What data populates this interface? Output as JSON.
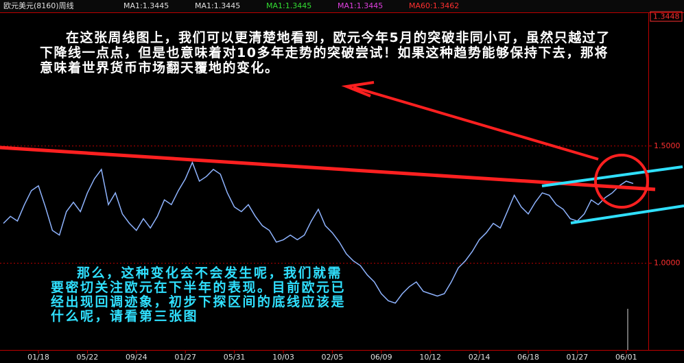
{
  "chart_data": {
    "type": "line",
    "title": "欧元美元(8160)周线",
    "indicators": [
      {
        "label": "MA1:1.3445",
        "color": "#e0e0e0"
      },
      {
        "label": "MA1:1.3445",
        "color": "#e0e0e0"
      },
      {
        "label": "MA1:1.3445",
        "color": "#33dd33"
      },
      {
        "label": "MA1:1.3445",
        "color": "#e040e0"
      },
      {
        "label": "MA60:1.3462",
        "color": "#ff3030"
      }
    ],
    "current_price_label": "1.3448",
    "annotations": [
      "在这张周线图上，我们可以更清楚地看到，欧元今年5月的突破非同小可，虽然只越过了下降线一点点，但是也意味着对10多年走势的突破尝试！如果这种趋势能够保持下去，那将意味着世界货币市场翻天覆地的变化。",
      "那么，这种变化会不会发生呢，我们就需要密切关注欧元在下半年的表现。目前欧元已经出现回调迹象，初步下探区间的底线应该是什么呢，请看第三张图"
    ],
    "categories": [
      null,
      null,
      null,
      null,
      null,
      "01/18",
      null,
      null,
      null,
      null,
      null,
      null,
      "05/22",
      null,
      null,
      null,
      null,
      null,
      null,
      "09/24",
      null,
      null,
      null,
      null,
      null,
      null,
      "01/27",
      null,
      null,
      null,
      null,
      null,
      null,
      "05/31",
      null,
      null,
      null,
      null,
      null,
      null,
      "10/03",
      null,
      null,
      null,
      null,
      null,
      null,
      "02/05",
      null,
      null,
      null,
      null,
      null,
      null,
      "06/09",
      null,
      null,
      null,
      null,
      null,
      null,
      "10/12",
      null,
      null,
      null,
      null,
      null,
      null,
      "02/14",
      null,
      null,
      null,
      null,
      null,
      null,
      "06/18",
      null,
      null,
      null,
      null,
      null,
      null,
      "01/27",
      null,
      null,
      null,
      null,
      null,
      null,
      "06/01",
      null
    ],
    "series": [
      {
        "color": "#8fb4ff",
        "values": [
          1.17,
          1.2,
          1.18,
          1.25,
          1.31,
          1.33,
          1.24,
          1.14,
          1.12,
          1.22,
          1.26,
          1.22,
          1.3,
          1.36,
          1.4,
          1.25,
          1.3,
          1.21,
          1.17,
          1.14,
          1.19,
          1.15,
          1.2,
          1.27,
          1.25,
          1.31,
          1.36,
          1.43,
          1.35,
          1.37,
          1.4,
          1.38,
          1.3,
          1.24,
          1.22,
          1.25,
          1.2,
          1.16,
          1.14,
          1.09,
          1.1,
          1.12,
          1.1,
          1.12,
          1.18,
          1.23,
          1.16,
          1.13,
          1.09,
          1.04,
          1.01,
          0.99,
          0.95,
          0.92,
          0.87,
          0.84,
          0.83,
          0.87,
          0.9,
          0.92,
          0.88,
          0.87,
          0.86,
          0.87,
          0.92,
          0.98,
          1.01,
          1.05,
          1.1,
          1.13,
          1.17,
          1.15,
          1.22,
          1.29,
          1.24,
          1.21,
          1.26,
          1.3,
          1.29,
          1.25,
          1.23,
          1.19,
          1.18,
          1.21,
          1.27,
          1.25,
          1.28,
          1.3,
          1.33,
          1.35,
          1.34
        ]
      }
    ],
    "ylim": [
      0.63,
      2.07
    ],
    "yticks": [
      {
        "value": 1.5,
        "label": "1.5000"
      },
      {
        "value": 1.0,
        "label": "1.0000"
      }
    ],
    "grid": true
  }
}
